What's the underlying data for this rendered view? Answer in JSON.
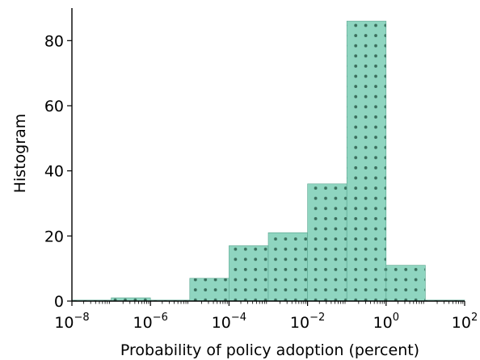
{
  "chart_data": {
    "type": "histogram",
    "title": "",
    "xlabel": "Probability of policy adoption (percent)",
    "ylabel": "Histogram",
    "x_scale": "log10",
    "xlim": [
      1e-08,
      100
    ],
    "ylim": [
      0,
      90
    ],
    "grid": false,
    "legend": "none",
    "bar_color": "#66c2a5",
    "hatch": "dots",
    "x_ticks": [
      {
        "base": "10",
        "exp": "−8"
      },
      {
        "base": "10",
        "exp": "−6"
      },
      {
        "base": "10",
        "exp": "−4"
      },
      {
        "base": "10",
        "exp": "−2"
      },
      {
        "base": "10",
        "exp": "0"
      },
      {
        "base": "10",
        "exp": "2"
      }
    ],
    "y_ticks": [
      "0",
      "20",
      "40",
      "60",
      "80"
    ],
    "bins": [
      {
        "x_start": 1e-08,
        "x_end": 1e-07,
        "count": 0
      },
      {
        "x_start": 1e-07,
        "x_end": 1e-06,
        "count": 1
      },
      {
        "x_start": 1e-06,
        "x_end": 1e-05,
        "count": 0
      },
      {
        "x_start": 1e-05,
        "x_end": 0.0001,
        "count": 7
      },
      {
        "x_start": 0.0001,
        "x_end": 0.001,
        "count": 17
      },
      {
        "x_start": 0.001,
        "x_end": 0.01,
        "count": 21
      },
      {
        "x_start": 0.01,
        "x_end": 0.1,
        "count": 36
      },
      {
        "x_start": 0.1,
        "x_end": 1,
        "count": 86
      },
      {
        "x_start": 1,
        "x_end": 10,
        "count": 11
      },
      {
        "x_start": 10,
        "x_end": 100,
        "count": 0
      }
    ]
  }
}
